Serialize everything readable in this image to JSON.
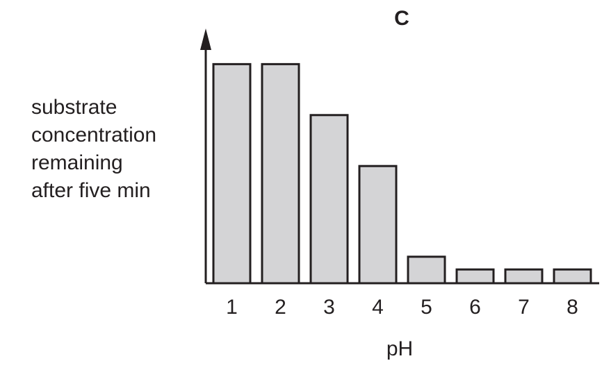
{
  "chart_data": {
    "type": "bar",
    "title": "C",
    "xlabel": "pH",
    "ylabel": [
      "substrate",
      "concentration",
      "remaining",
      "after five min"
    ],
    "categories": [
      "1",
      "2",
      "3",
      "4",
      "5",
      "6",
      "7",
      "8"
    ],
    "values": [
      86,
      86,
      66,
      46,
      10.4,
      5.4,
      5.4,
      5.4
    ],
    "ylim": [
      0,
      100
    ],
    "grid": false,
    "legend": "none",
    "colors": {
      "bar_fill": "#d4d4d6",
      "stroke": "#231f20"
    }
  }
}
